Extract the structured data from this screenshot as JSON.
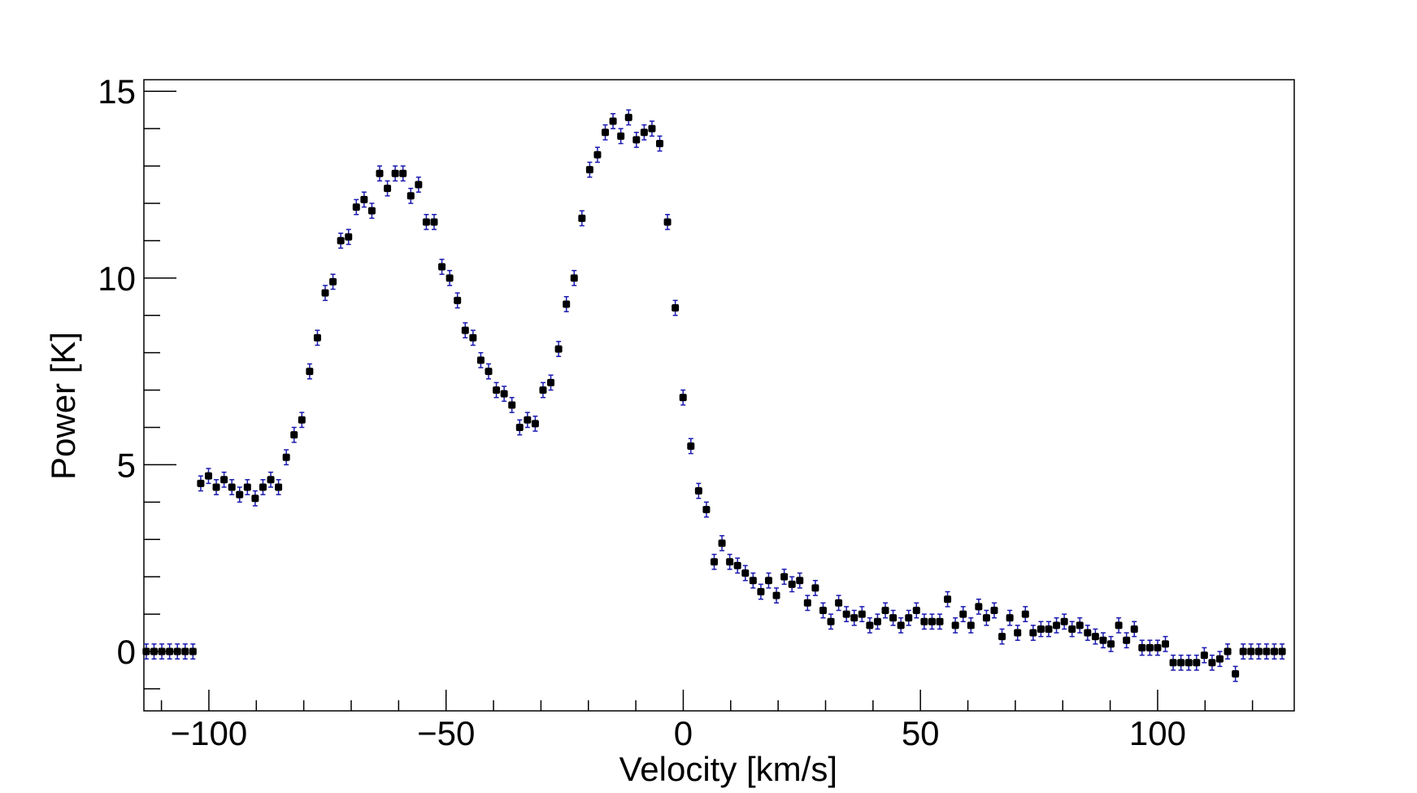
{
  "chart_data": {
    "type": "scatter",
    "xlabel": "Velocity [km/s]",
    "ylabel": "Power [K]",
    "xlim": [
      -113.7,
      128.8
    ],
    "ylim": [
      -1.59,
      15.31
    ],
    "xticks": [
      {
        "value": -100,
        "label": "−100"
      },
      {
        "value": -50,
        "label": "−50"
      },
      0,
      50,
      100
    ],
    "xminorticks": [
      -110,
      -90,
      -80,
      -70,
      -60,
      -40,
      -30,
      -20,
      -10,
      10,
      20,
      30,
      40,
      60,
      70,
      80,
      90,
      110,
      120
    ],
    "yticks": [
      0,
      5,
      10,
      15
    ],
    "yminorticks": [
      -1,
      1,
      2,
      3,
      4,
      6,
      7,
      8,
      9,
      11,
      12,
      13,
      14
    ],
    "series": [
      {
        "color": "#000000",
        "error_color": "#1a1ab0",
        "yerr": 0.2,
        "x": [
          -113.2,
          -111.56,
          -109.92,
          -108.28,
          -106.64,
          -105.0,
          -103.36,
          -101.72,
          -100.08,
          -98.44,
          -96.8,
          -95.16,
          -93.52,
          -91.88,
          -90.24,
          -88.6,
          -86.96,
          -85.32,
          -83.68,
          -82.04,
          -80.4,
          -78.76,
          -77.12,
          -75.48,
          -73.84,
          -72.2,
          -70.56,
          -68.92,
          -67.28,
          -65.64,
          -64.0,
          -62.36,
          -60.72,
          -59.08,
          -57.44,
          -55.8,
          -54.16,
          -52.52,
          -50.88,
          -49.24,
          -47.6,
          -45.96,
          -44.32,
          -42.68,
          -41.04,
          -39.4,
          -37.76,
          -36.12,
          -34.48,
          -32.84,
          -31.2,
          -29.56,
          -27.92,
          -26.28,
          -24.64,
          -23.0,
          -21.36,
          -19.72,
          -18.08,
          -16.44,
          -14.8,
          -13.16,
          -11.52,
          -9.88,
          -8.24,
          -6.6,
          -4.96,
          -3.32,
          -1.68,
          -0.04,
          1.6,
          3.24,
          4.88,
          6.52,
          8.16,
          9.8,
          11.44,
          13.08,
          14.72,
          16.36,
          18.0,
          19.64,
          21.28,
          22.92,
          24.56,
          26.2,
          27.84,
          29.48,
          31.12,
          32.76,
          34.4,
          36.04,
          37.68,
          39.32,
          40.96,
          42.6,
          44.24,
          45.88,
          47.52,
          49.16,
          50.8,
          52.44,
          54.08,
          55.72,
          57.36,
          59.0,
          60.64,
          62.28,
          63.92,
          65.56,
          67.2,
          68.84,
          70.48,
          72.12,
          73.76,
          75.4,
          77.04,
          78.68,
          80.32,
          81.96,
          83.6,
          85.24,
          86.88,
          88.52,
          90.16,
          91.8,
          93.44,
          95.08,
          96.72,
          98.36,
          100.0,
          101.64,
          103.28,
          104.92,
          106.56,
          108.2,
          109.84,
          111.48,
          113.12,
          114.76,
          116.4,
          118.04,
          119.68,
          121.32,
          122.96,
          124.6,
          126.24
        ],
        "values": [
          0,
          0,
          0,
          0,
          0,
          0,
          0,
          4.5,
          4.7,
          4.4,
          4.6,
          4.4,
          4.2,
          4.4,
          4.1,
          4.4,
          4.6,
          4.4,
          5.2,
          5.8,
          6.2,
          7.5,
          8.4,
          9.6,
          9.9,
          11.0,
          11.1,
          11.9,
          12.1,
          11.8,
          12.8,
          12.4,
          12.8,
          12.8,
          12.2,
          12.5,
          11.5,
          11.5,
          10.3,
          10.0,
          9.4,
          8.6,
          8.4,
          7.8,
          7.5,
          7.0,
          6.9,
          6.6,
          6.0,
          6.2,
          6.1,
          7.0,
          7.2,
          8.1,
          9.3,
          10.0,
          11.6,
          12.9,
          13.3,
          13.9,
          14.2,
          13.8,
          14.3,
          13.7,
          13.9,
          14.0,
          13.6,
          11.5,
          9.2,
          6.8,
          5.5,
          4.3,
          3.8,
          2.4,
          2.9,
          2.4,
          2.3,
          2.1,
          1.9,
          1.6,
          1.9,
          1.5,
          2.0,
          1.8,
          1.9,
          1.3,
          1.7,
          1.1,
          0.8,
          1.3,
          1.0,
          0.9,
          1.0,
          0.7,
          0.8,
          1.1,
          0.9,
          0.7,
          0.9,
          1.1,
          0.8,
          0.8,
          0.8,
          1.4,
          0.7,
          1.0,
          0.7,
          1.2,
          0.9,
          1.1,
          0.4,
          0.9,
          0.5,
          1.0,
          0.5,
          0.6,
          0.6,
          0.7,
          0.8,
          0.6,
          0.7,
          0.5,
          0.4,
          0.3,
          0.2,
          0.7,
          0.3,
          0.6,
          0.1,
          0.1,
          0.1,
          0.2,
          -0.3,
          -0.3,
          -0.3,
          -0.3,
          -0.1,
          -0.3,
          -0.2,
          0,
          -0.6,
          0,
          0,
          0,
          0,
          0,
          0
        ]
      }
    ]
  }
}
